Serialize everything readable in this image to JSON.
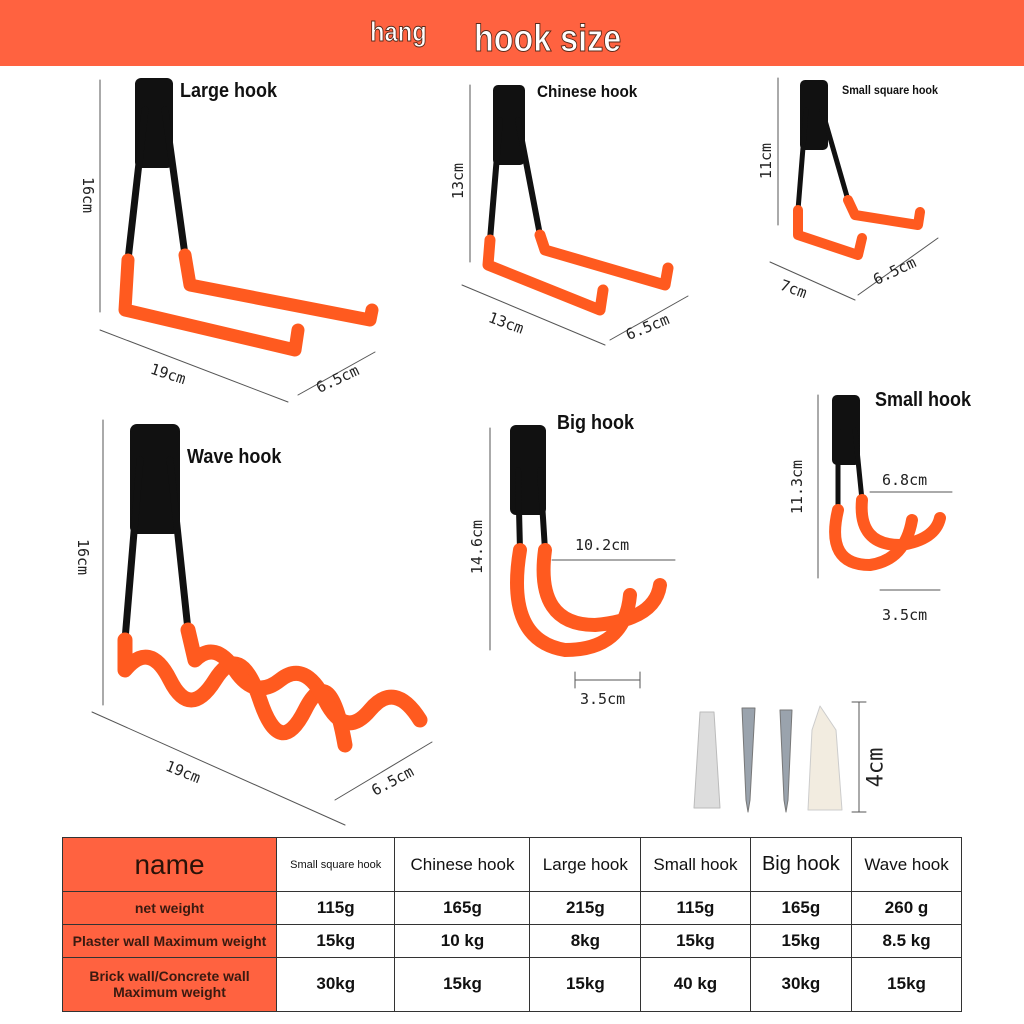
{
  "header": {
    "prefix": "hang",
    "title": "hook size"
  },
  "hooks": {
    "large": {
      "title": "Large hook",
      "height": "16cm",
      "length": "19cm",
      "width": "6.5cm"
    },
    "chinese": {
      "title": "Chinese hook",
      "height": "13cm",
      "length": "13cm",
      "width": "6.5cm"
    },
    "small_square": {
      "title": "Small square hook",
      "height": "11cm",
      "length": "7cm",
      "width": "6.5cm"
    },
    "wave": {
      "title": "Wave hook",
      "height": "16cm",
      "length": "19cm",
      "width": "6.5cm"
    },
    "big": {
      "title": "Big hook",
      "height": "14.6cm",
      "reach": "10.2cm",
      "width": "3.5cm"
    },
    "small": {
      "title": "Small hook",
      "height": "11.3cm",
      "reach": "6.8cm",
      "width": "3.5cm"
    },
    "screws": {
      "length": "4cm"
    }
  },
  "colors": {
    "accent": "#FF6240",
    "hook_orange": "#FF5A1F",
    "hook_black": "#111111"
  },
  "table": {
    "header": [
      "name",
      "Small square hook",
      "Chinese hook",
      "Large hook",
      "Small hook",
      "Big hook",
      "Wave hook"
    ],
    "rows": [
      {
        "label": "net weight",
        "values": [
          "115g",
          "165g",
          "215g",
          "115g",
          "165g",
          "260 g"
        ]
      },
      {
        "label": "Plaster wall Maximum weight",
        "values": [
          "15kg",
          "10 kg",
          "8kg",
          "15kg",
          "15kg",
          "8.5 kg"
        ]
      },
      {
        "label": "Brick wall/Concrete wall Maximum weight",
        "values": [
          "30kg",
          "15kg",
          "15kg",
          "40 kg",
          "30kg",
          "15kg"
        ]
      }
    ]
  }
}
